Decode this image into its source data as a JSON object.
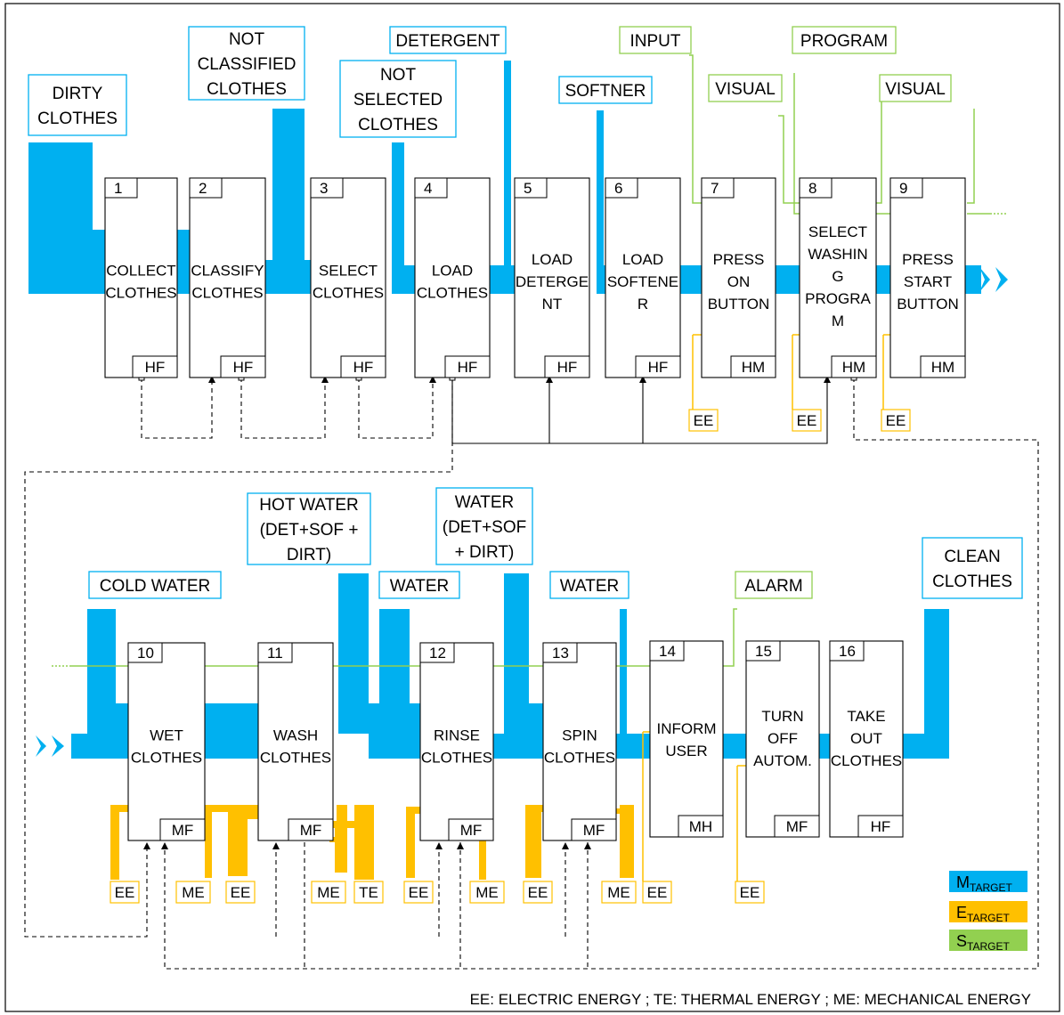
{
  "colors": {
    "material": "#00b0f0",
    "energy": "#ffc000",
    "signal": "#92d050",
    "box_border": "#000000",
    "material_label_border": "#00b0f0",
    "signal_label_border": "#92d050",
    "energy_label_border": "#ffc000"
  },
  "functions": [
    {
      "num": "1",
      "lines": [
        "COLLECT",
        "CLOTHES"
      ],
      "code": "HF"
    },
    {
      "num": "2",
      "lines": [
        "CLASSIFY",
        "CLOTHES"
      ],
      "code": "HF"
    },
    {
      "num": "3",
      "lines": [
        "SELECT",
        "CLOTHES"
      ],
      "code": "HF"
    },
    {
      "num": "4",
      "lines": [
        "LOAD",
        "CLOTHES"
      ],
      "code": "HF"
    },
    {
      "num": "5",
      "lines": [
        "LOAD",
        "DETERGE",
        "NT"
      ],
      "code": "HF"
    },
    {
      "num": "6",
      "lines": [
        "LOAD",
        "SOFTENE",
        "R"
      ],
      "code": "HF"
    },
    {
      "num": "7",
      "lines": [
        "PRESS",
        "ON",
        "BUTTON"
      ],
      "code": "HM"
    },
    {
      "num": "8",
      "lines": [
        "SELECT",
        "WASHIN",
        "G",
        "PROGRA",
        "M"
      ],
      "code": "HM"
    },
    {
      "num": "9",
      "lines": [
        "PRESS",
        "START",
        "BUTTON"
      ],
      "code": "HM"
    },
    {
      "num": "10",
      "lines": [
        "WET",
        "CLOTHES"
      ],
      "code": "MF"
    },
    {
      "num": "11",
      "lines": [
        "WASH",
        "CLOTHES"
      ],
      "code": "MF"
    },
    {
      "num": "12",
      "lines": [
        "RINSE",
        "CLOTHES"
      ],
      "code": "MF"
    },
    {
      "num": "13",
      "lines": [
        "SPIN",
        "CLOTHES"
      ],
      "code": "MF"
    },
    {
      "num": "14",
      "lines": [
        "INFORM",
        "USER"
      ],
      "code": "MH"
    },
    {
      "num": "15",
      "lines": [
        "TURN",
        "OFF",
        "AUTOM."
      ],
      "code": "MF"
    },
    {
      "num": "16",
      "lines": [
        "TAKE",
        "OUT",
        "CLOTHES"
      ],
      "code": "HF"
    }
  ],
  "flow_labels": [
    {
      "id": "dirty-clothes",
      "type": "material",
      "lines": [
        "DIRTY",
        "CLOTHES"
      ]
    },
    {
      "id": "not-classified-clothes",
      "type": "material",
      "lines": [
        "NOT",
        "CLASSIFIED",
        "CLOTHES"
      ]
    },
    {
      "id": "not-selected-clothes",
      "type": "material",
      "lines": [
        "NOT",
        "SELECTED",
        "CLOTHES"
      ]
    },
    {
      "id": "detergent",
      "type": "material",
      "lines": [
        "DETERGENT"
      ]
    },
    {
      "id": "softner",
      "type": "material",
      "lines": [
        "SOFTNER"
      ]
    },
    {
      "id": "input",
      "type": "signal",
      "lines": [
        "INPUT"
      ]
    },
    {
      "id": "visual-1",
      "type": "signal",
      "lines": [
        "VISUAL"
      ]
    },
    {
      "id": "program",
      "type": "signal",
      "lines": [
        "PROGRAM"
      ]
    },
    {
      "id": "visual-2",
      "type": "signal",
      "lines": [
        "VISUAL"
      ]
    },
    {
      "id": "cold-water",
      "type": "material",
      "lines": [
        "COLD WATER"
      ]
    },
    {
      "id": "hot-water",
      "type": "material",
      "lines": [
        "HOT WATER",
        "(DET+SOF +",
        "DIRT)"
      ]
    },
    {
      "id": "water-1",
      "type": "material",
      "lines": [
        "WATER"
      ]
    },
    {
      "id": "water-dirt",
      "type": "material",
      "lines": [
        "WATER",
        "(DET+SOF",
        "+ DIRT)"
      ]
    },
    {
      "id": "water-2",
      "type": "material",
      "lines": [
        "WATER"
      ]
    },
    {
      "id": "alarm",
      "type": "signal",
      "lines": [
        "ALARM"
      ]
    },
    {
      "id": "clean-clothes",
      "type": "material",
      "lines": [
        "CLEAN",
        "CLOTHES"
      ]
    }
  ],
  "energy_labels": [
    {
      "id": "ee-7",
      "text": "EE"
    },
    {
      "id": "ee-8",
      "text": "EE"
    },
    {
      "id": "ee-9",
      "text": "EE"
    },
    {
      "id": "ee-10",
      "text": "EE"
    },
    {
      "id": "me-10",
      "text": "ME"
    },
    {
      "id": "ee-11",
      "text": "EE"
    },
    {
      "id": "me-11",
      "text": "ME"
    },
    {
      "id": "te-11",
      "text": "TE"
    },
    {
      "id": "ee-12",
      "text": "EE"
    },
    {
      "id": "me-12",
      "text": "ME"
    },
    {
      "id": "ee-13",
      "text": "EE"
    },
    {
      "id": "me-13",
      "text": "ME"
    },
    {
      "id": "ee-14",
      "text": "EE"
    },
    {
      "id": "ee-15",
      "text": "EE"
    }
  ],
  "legend": [
    {
      "id": "m",
      "letter": "M",
      "sub": "TARGET",
      "color": "#00b0f0"
    },
    {
      "id": "e",
      "letter": "E",
      "sub": "TARGET",
      "color": "#ffc000"
    },
    {
      "id": "s",
      "letter": "S",
      "sub": "TARGET",
      "color": "#92d050"
    }
  ],
  "footer": "EE: ELECTRIC ENERGY ; TE: THERMAL ENERGY ; ME: MECHANICAL ENERGY"
}
